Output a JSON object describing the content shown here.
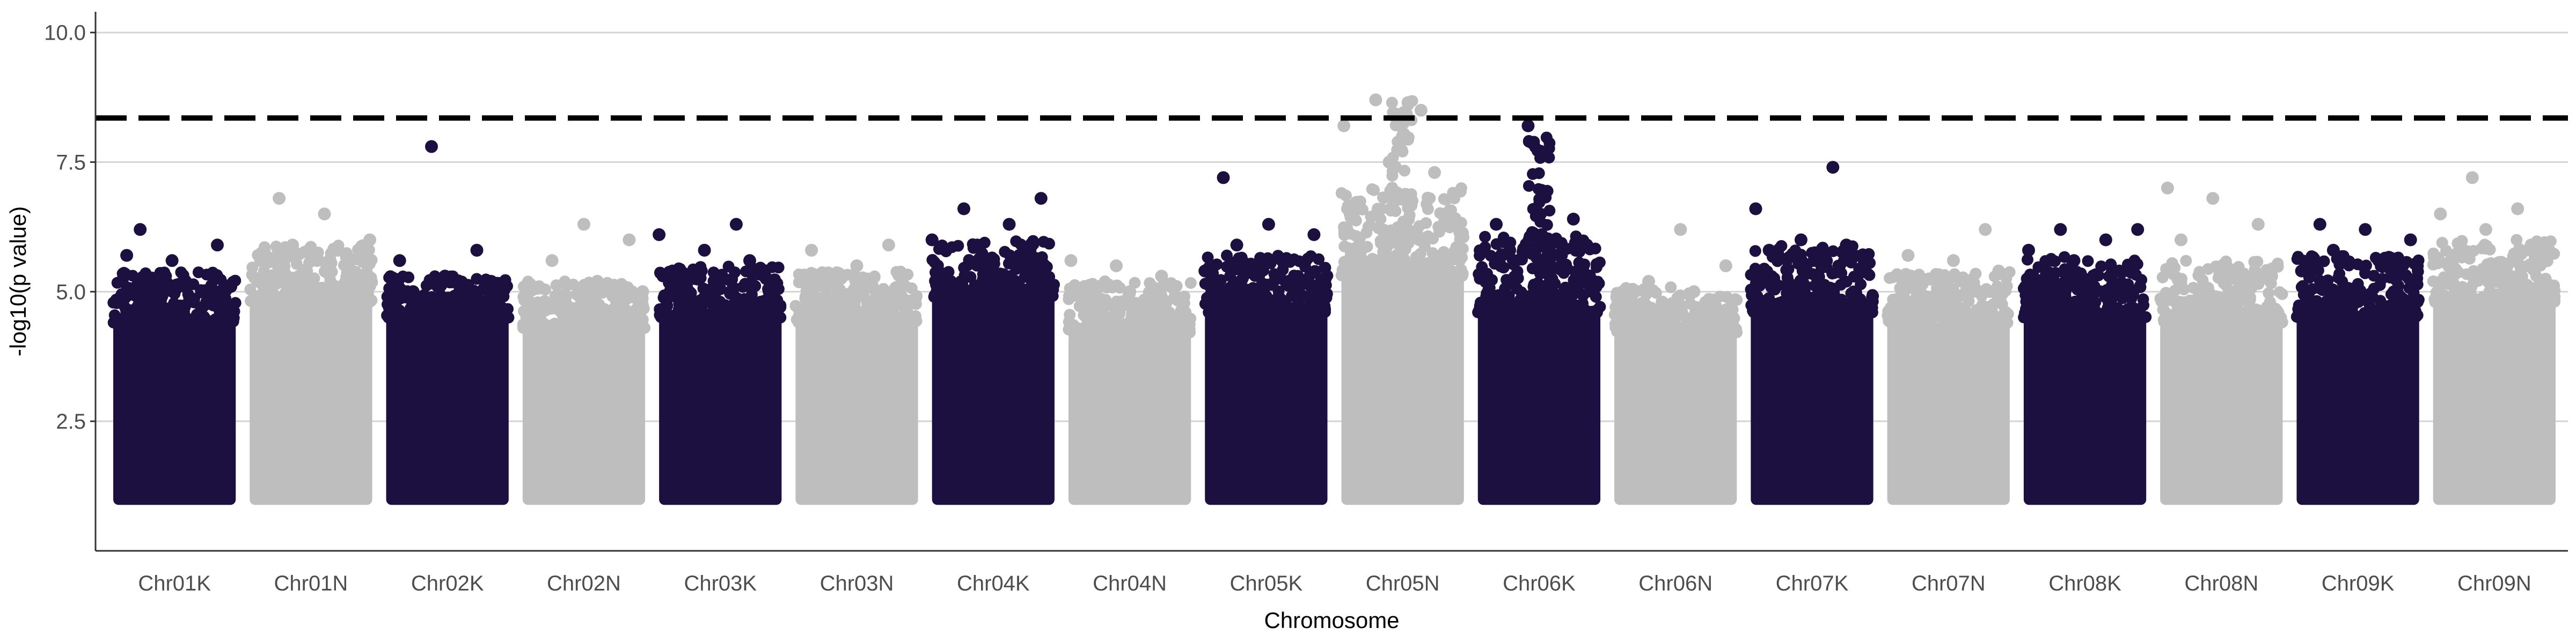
{
  "chart_data": {
    "type": "scatter",
    "subtype": "manhattan",
    "title": "",
    "xlabel": "Chromosome",
    "ylabel": "-log10(p value)",
    "ylim": [
      0.0,
      10.4
    ],
    "yticks": [
      2.5,
      5.0,
      7.5,
      10.0
    ],
    "ytick_labels": [
      "2.5",
      "5.0",
      "7.5",
      "10.0"
    ],
    "grid": "horizontal major gridlines",
    "legend": "none",
    "threshold": {
      "value": 8.35,
      "style": "dashed",
      "color": "#000000"
    },
    "colors": {
      "dark": "#1c1040",
      "light": "#bebebe"
    },
    "point_floor": 1.0,
    "chromosomes": [
      {
        "name": "Chr01K",
        "color": "dark",
        "bulk_top": 4.4,
        "top_hits": [
          5.7,
          5.6,
          5.9,
          6.2,
          5.2,
          5.1
        ]
      },
      {
        "name": "Chr01N",
        "color": "light",
        "bulk_top": 4.8,
        "top_hits": [
          6.8,
          6.5,
          6.0,
          5.9,
          5.8,
          5.6
        ]
      },
      {
        "name": "Chr02K",
        "color": "dark",
        "bulk_top": 4.5,
        "top_hits": [
          7.8,
          5.8,
          5.6,
          5.3,
          5.2,
          5.0
        ]
      },
      {
        "name": "Chr02N",
        "color": "light",
        "bulk_top": 4.3,
        "top_hits": [
          6.3,
          6.0,
          5.6,
          5.2,
          5.0,
          4.9
        ]
      },
      {
        "name": "Chr03K",
        "color": "dark",
        "bulk_top": 4.5,
        "top_hits": [
          6.3,
          6.1,
          5.8,
          5.6,
          5.4,
          5.2
        ]
      },
      {
        "name": "Chr03N",
        "color": "light",
        "bulk_top": 4.4,
        "top_hits": [
          5.9,
          5.8,
          5.5,
          5.3,
          5.2,
          5.1
        ]
      },
      {
        "name": "Chr04K",
        "color": "dark",
        "bulk_top": 4.9,
        "top_hits": [
          6.8,
          6.6,
          6.3,
          6.0,
          5.9,
          5.7
        ]
      },
      {
        "name": "Chr04N",
        "color": "light",
        "bulk_top": 4.2,
        "top_hits": [
          5.6,
          5.5,
          5.3,
          5.1,
          5.0,
          4.9
        ]
      },
      {
        "name": "Chr05K",
        "color": "dark",
        "bulk_top": 4.6,
        "top_hits": [
          7.2,
          6.3,
          6.1,
          5.9,
          5.6,
          5.4
        ]
      },
      {
        "name": "Chr05N",
        "color": "light",
        "bulk_top": 5.3,
        "top_hits": [
          8.7,
          8.5,
          8.2,
          7.5,
          7.3,
          6.7
        ]
      },
      {
        "name": "Chr06K",
        "color": "dark",
        "bulk_top": 4.6,
        "top_hits": [
          8.2,
          6.4,
          6.3,
          6.1,
          5.9,
          5.8
        ]
      },
      {
        "name": "Chr06N",
        "color": "light",
        "bulk_top": 4.2,
        "top_hits": [
          6.2,
          5.5,
          5.2,
          5.0,
          4.9,
          4.8
        ]
      },
      {
        "name": "Chr07K",
        "color": "dark",
        "bulk_top": 4.6,
        "top_hits": [
          7.4,
          6.6,
          6.0,
          5.9,
          5.8,
          5.6
        ]
      },
      {
        "name": "Chr07N",
        "color": "light",
        "bulk_top": 4.4,
        "top_hits": [
          6.2,
          5.7,
          5.6,
          5.4,
          5.2,
          5.1
        ]
      },
      {
        "name": "Chr08K",
        "color": "dark",
        "bulk_top": 4.5,
        "top_hits": [
          6.2,
          6.2,
          6.0,
          5.8,
          5.6,
          5.4
        ]
      },
      {
        "name": "Chr08N",
        "color": "light",
        "bulk_top": 4.4,
        "top_hits": [
          7.0,
          6.8,
          6.3,
          6.0,
          5.5,
          5.3
        ]
      },
      {
        "name": "Chr09K",
        "color": "dark",
        "bulk_top": 4.5,
        "top_hits": [
          6.3,
          6.2,
          6.0,
          5.8,
          5.6,
          5.4
        ]
      },
      {
        "name": "Chr09N",
        "color": "light",
        "bulk_top": 4.8,
        "top_hits": [
          7.2,
          6.6,
          6.5,
          6.2,
          5.9,
          5.7
        ]
      }
    ]
  }
}
